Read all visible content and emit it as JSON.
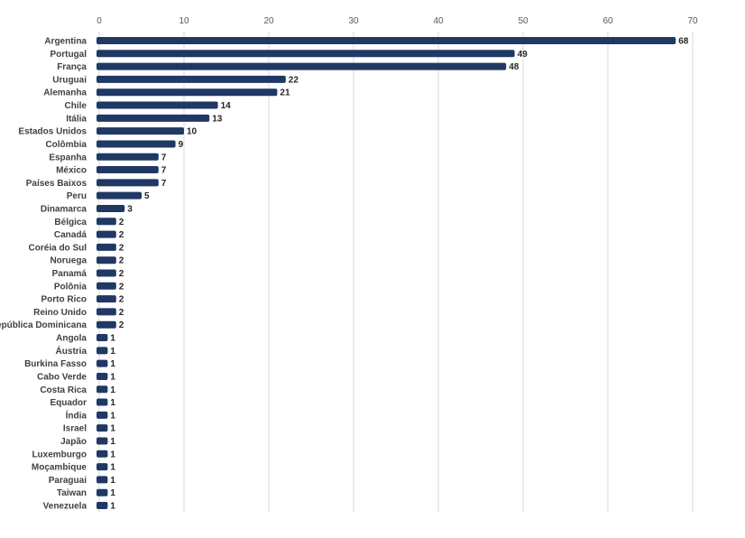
{
  "chart_data": {
    "type": "bar",
    "orientation": "horizontal",
    "categories": [
      "Argentina",
      "Portugal",
      "França",
      "Uruguai",
      "Alemanha",
      "Chile",
      "Itália",
      "Estados Unidos",
      "Colômbia",
      "Espanha",
      "México",
      "Países Baixos",
      "Peru",
      "Dinamarca",
      "Bélgica",
      "Canadá",
      "Coréia do Sul",
      "Noruega",
      "Panamá",
      "Polônia",
      "Porto Rico",
      "Reino Unido",
      "República Dominicana",
      "Angola",
      "Áustria",
      "Burkina Fasso",
      "Cabo Verde",
      "Costa Rica",
      "Equador",
      "Índia",
      "Israel",
      "Japão",
      "Luxemburgo",
      "Moçambique",
      "Paraguai",
      "Taiwan",
      "Venezuela"
    ],
    "values": [
      68,
      49,
      48,
      22,
      21,
      14,
      13,
      10,
      9,
      7,
      7,
      7,
      5,
      3,
      2,
      2,
      2,
      2,
      2,
      2,
      2,
      2,
      2,
      1,
      1,
      1,
      1,
      1,
      1,
      1,
      1,
      1,
      1,
      1,
      1,
      1,
      1
    ],
    "xlim": [
      0,
      70
    ],
    "xticks": [
      0,
      10,
      20,
      30,
      40,
      50,
      60,
      70
    ],
    "axis_position": "top",
    "grid": true,
    "data_labels": true,
    "bar_color": "#1f3864",
    "grid_color": "#d9d9d9"
  }
}
